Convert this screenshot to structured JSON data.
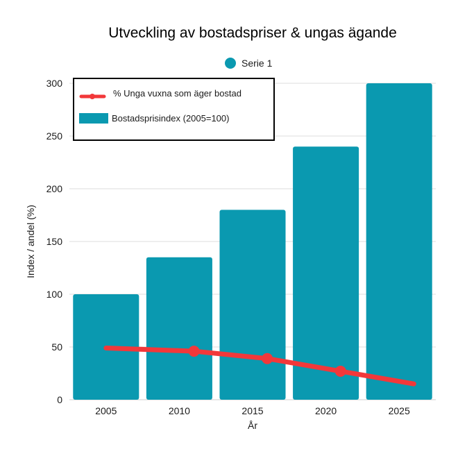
{
  "chart_data": {
    "type": "bar",
    "title": "Utveckling av bostadspriser & ungas ägande",
    "xlabel": "År",
    "ylabel": "Index / andel (%)",
    "ylim": [
      0,
      300
    ],
    "yticks": [
      0,
      50,
      100,
      150,
      200,
      250,
      300
    ],
    "categories": [
      "2005",
      "2010",
      "2015",
      "2020",
      "2025"
    ],
    "grid": true,
    "top_legend": {
      "label": "Serie 1",
      "color": "#0a99b0"
    },
    "series": [
      {
        "name": "Bostadsprisindex (2005=100)",
        "type": "bar",
        "color": "#0a99b0",
        "values": [
          100,
          135,
          180,
          240,
          300
        ]
      },
      {
        "name": "% Unga vuxna som äger bostad",
        "type": "line",
        "color": "#f2383a",
        "x": [
          2005,
          2011,
          2016,
          2021,
          2026
        ],
        "values": [
          49,
          46,
          39,
          27,
          15
        ],
        "markers": [
          false,
          true,
          true,
          true,
          false
        ]
      }
    ],
    "legend_position": "top-left"
  }
}
